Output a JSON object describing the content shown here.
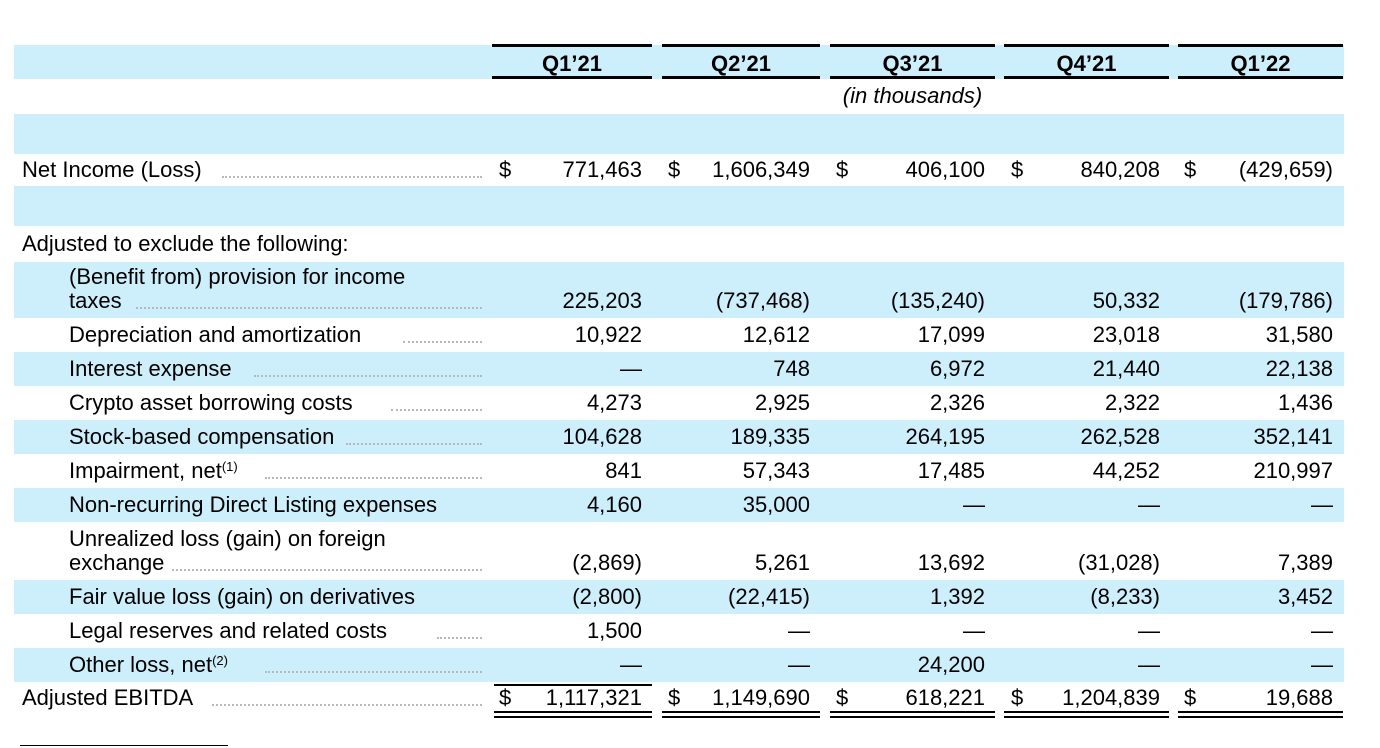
{
  "header": {
    "quarters": [
      "Q1’21",
      "Q2’21",
      "Q3’21",
      "Q4’21",
      "Q1’22"
    ],
    "units_note": "(in thousands)"
  },
  "net_income": {
    "label": "Net Income (Loss)",
    "currency": "$",
    "values": [
      "771,463",
      "1,606,349",
      "406,100",
      "840,208",
      "(429,659)"
    ]
  },
  "adjustments_heading": "Adjusted to exclude the following:",
  "adjustments": [
    {
      "label_line1": "(Benefit from) provision for income",
      "label_line2": "taxes",
      "values": [
        "225,203",
        "(737,468)",
        "(135,240)",
        "50,332",
        "(179,786)"
      ]
    },
    {
      "label_line1": "Depreciation and amortization",
      "values": [
        "10,922",
        "12,612",
        "17,099",
        "23,018",
        "31,580"
      ]
    },
    {
      "label_line1": "Interest expense",
      "values": [
        "—",
        "748",
        "6,972",
        "21,440",
        "22,138"
      ]
    },
    {
      "label_line1": "Crypto asset borrowing costs",
      "values": [
        "4,273",
        "2,925",
        "2,326",
        "2,322",
        "1,436"
      ]
    },
    {
      "label_line1": "Stock-based compensation",
      "values": [
        "104,628",
        "189,335",
        "264,195",
        "262,528",
        "352,141"
      ]
    },
    {
      "label_line1": "Impairment, net",
      "footnote": "(1)",
      "values": [
        "841",
        "57,343",
        "17,485",
        "44,252",
        "210,997"
      ]
    },
    {
      "label_line1": "Non-recurring Direct Listing expenses",
      "values": [
        "4,160",
        "35,000",
        "—",
        "—",
        "—"
      ]
    },
    {
      "label_line1": "Unrealized loss (gain) on foreign",
      "label_line2": "exchange",
      "values": [
        "(2,869)",
        "5,261",
        "13,692",
        "(31,028)",
        "7,389"
      ]
    },
    {
      "label_line1": "Fair value loss (gain) on derivatives",
      "values": [
        "(2,800)",
        "(22,415)",
        "1,392",
        "(8,233)",
        "3,452"
      ]
    },
    {
      "label_line1": "Legal reserves and related costs",
      "values": [
        "1,500",
        "—",
        "—",
        "—",
        "—"
      ]
    },
    {
      "label_line1": "Other loss, net",
      "footnote": "(2)",
      "values": [
        "—",
        "—",
        "24,200",
        "—",
        "—"
      ]
    }
  ],
  "adjusted_ebitda": {
    "label": "Adjusted EBITDA",
    "currency": "$",
    "values": [
      "1,117,321",
      "1,149,690",
      "618,221",
      "1,204,839",
      "19,688"
    ]
  },
  "colors": {
    "band": "#cdeefb",
    "leader": "#b8b8b8"
  }
}
